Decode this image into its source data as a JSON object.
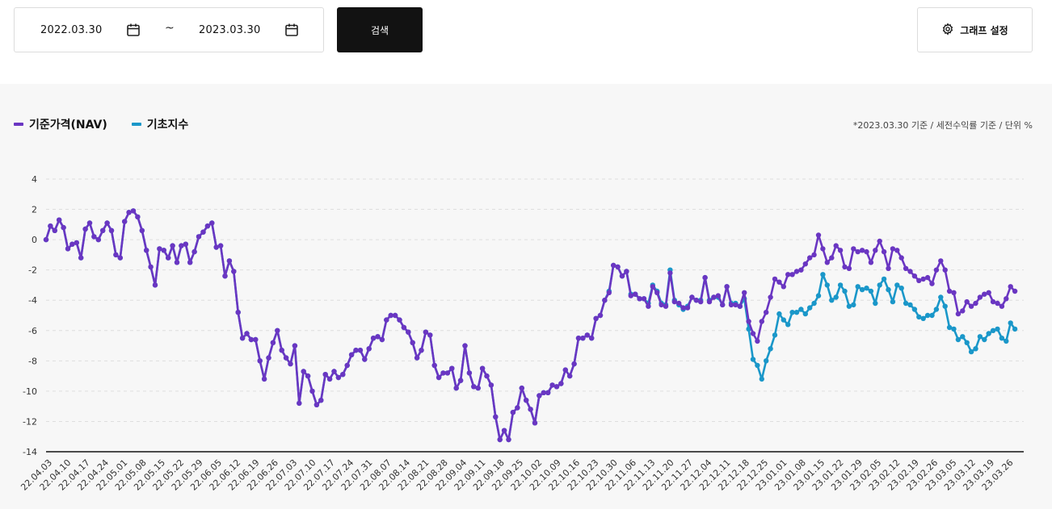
{
  "search": {
    "start_date": "2022.03.30",
    "end_date": "2023.03.30",
    "separator": "~",
    "button_label": "검색",
    "calendar_icon": "calendar-icon"
  },
  "settings": {
    "label": "그래프 설정",
    "icon": "gear-icon"
  },
  "legend": [
    {
      "label": "기준가격(NAV)",
      "color": "#6a36c2"
    },
    {
      "label": "기초지수",
      "color": "#1a97c9"
    }
  ],
  "note": "*2023.03.30 기준 / 세전수익률 기준 / 단위 %",
  "chart_data": {
    "type": "line",
    "ylim": [
      -14,
      4
    ],
    "yticks": [
      -14,
      -12,
      -10,
      -8,
      -6,
      -4,
      -2,
      0,
      2,
      4
    ],
    "grid": true,
    "xtick_labels": [
      "22.04.03",
      "22.04.10",
      "22.04.17",
      "22.04.24",
      "22.05.01",
      "22.05.08",
      "22.05.15",
      "22.05.22",
      "22.05.29",
      "22.06.05",
      "22.06.12",
      "22.06.19",
      "22.06.26",
      "22.07.03",
      "22.07.10",
      "22.07.17",
      "22.07.24",
      "22.07.31",
      "22.08.07",
      "22.08.14",
      "22.08.21",
      "22.08.28",
      "22.09.04",
      "22.09.11",
      "22.09.18",
      "22.09.25",
      "22.10.02",
      "22.10.09",
      "22.10.16",
      "22.10.23",
      "22.10.30",
      "22.11.06",
      "22.11.13",
      "22.11.20",
      "22.11.27",
      "22.12.04",
      "22.12.11",
      "22.12.18",
      "22.12.25",
      "23.01.01",
      "23.01.08",
      "23.01.15",
      "23.01.22",
      "23.01.29",
      "23.02.05",
      "23.02.12",
      "23.02.19",
      "23.02.26",
      "23.03.05",
      "23.03.12",
      "23.03.19",
      "23.03.26"
    ],
    "series": [
      {
        "name": "기준가격(NAV)",
        "color": "#6a36c2",
        "values": [
          0.0,
          0.9,
          0.6,
          1.3,
          0.8,
          -0.6,
          -0.3,
          -0.2,
          -1.2,
          0.7,
          1.1,
          0.2,
          0.0,
          0.6,
          1.1,
          0.6,
          -1.0,
          -1.2,
          1.2,
          1.8,
          1.9,
          1.5,
          0.6,
          -0.7,
          -1.8,
          -3.0,
          -0.6,
          -0.7,
          -1.2,
          -0.4,
          -1.5,
          -0.4,
          -0.3,
          -1.5,
          -0.8,
          0.2,
          0.5,
          0.9,
          1.1,
          -0.5,
          -0.4,
          -2.4,
          -1.4,
          -2.1,
          -4.8,
          -6.5,
          -6.2,
          -6.6,
          -6.6,
          -8.0,
          -9.2,
          -7.8,
          -6.8,
          -6.0,
          -7.3,
          -7.8,
          -8.2,
          -7.0,
          -10.8,
          -8.7,
          -9.0,
          -10.0,
          -10.9,
          -10.6,
          -8.9,
          -9.2,
          -8.7,
          -9.1,
          -8.9,
          -8.3,
          -7.6,
          -7.3,
          -7.3,
          -7.9,
          -7.2,
          -6.5,
          -6.4,
          -6.6,
          -5.3,
          -5.0,
          -5.0,
          -5.3,
          -5.8,
          -6.1,
          -6.8,
          -7.8,
          -7.3,
          -6.1,
          -6.3,
          -8.3,
          -9.1,
          -8.8,
          -8.8,
          -8.5,
          -9.8,
          -9.3,
          -7.0,
          -8.8,
          -9.7,
          -9.8,
          -8.5,
          -9.0,
          -9.6,
          -11.7,
          -13.2,
          -12.6,
          -13.2,
          -11.4,
          -11.1,
          -9.8,
          -10.6,
          -11.2,
          -12.1,
          -10.3,
          -10.1,
          -10.1,
          -9.6,
          -9.7,
          -9.5,
          -8.6,
          -9.0,
          -8.2,
          -6.5,
          -6.5,
          -6.3,
          -6.5,
          -5.2,
          -5.0,
          -4.0,
          -3.5,
          -1.7,
          -1.8,
          -2.4,
          -2.1,
          -3.7,
          -3.6,
          -3.9,
          -3.9,
          -4.4,
          -3.1,
          -3.5,
          -4.3,
          -4.4,
          -2.2,
          -4.1,
          -4.2,
          -4.5,
          -4.5,
          -3.8,
          -4.0,
          -4.1,
          -2.5,
          -4.1,
          -3.8,
          -3.7,
          -4.3,
          -3.1,
          -4.3,
          -4.3,
          -4.4,
          -3.5,
          -5.4,
          -6.2,
          -6.7,
          -5.4,
          -4.8,
          -3.8,
          -2.6,
          -2.8,
          -3.1,
          -2.3,
          -2.3,
          -2.1,
          -2.0,
          -1.6,
          -1.2,
          -1.0,
          0.3,
          -0.6,
          -1.5,
          -1.2,
          -0.4,
          -0.7,
          -1.8,
          -1.9,
          -0.6,
          -0.8,
          -0.7,
          -0.8,
          -1.5,
          -0.7,
          -0.1,
          -0.8,
          -1.9,
          -0.6,
          -0.7,
          -1.2,
          -1.9,
          -2.1,
          -2.4,
          -2.7,
          -2.6,
          -2.5,
          -2.9,
          -2.0,
          -1.4,
          -2.0,
          -3.4,
          -3.5,
          -4.9,
          -4.7,
          -4.1,
          -4.4,
          -4.2,
          -3.8,
          -3.6,
          -3.5,
          -4.1,
          -4.2,
          -4.4,
          -3.9,
          -3.1,
          -3.4
        ],
        "reported_values_only": true
      },
      {
        "name": "기초지수",
        "color": "#1a97c9",
        "values": [
          0.0,
          0.9,
          0.6,
          1.3,
          0.8,
          -0.6,
          -0.3,
          -0.2,
          -1.2,
          0.7,
          1.1,
          0.2,
          0.0,
          0.6,
          1.1,
          0.6,
          -1.0,
          -1.2,
          1.2,
          1.8,
          1.9,
          1.5,
          0.6,
          -0.7,
          -1.8,
          -3.0,
          -0.6,
          -0.7,
          -1.2,
          -0.4,
          -1.5,
          -0.4,
          -0.3,
          -1.5,
          -0.8,
          0.2,
          0.5,
          0.9,
          1.1,
          -0.5,
          -0.4,
          -2.4,
          -1.4,
          -2.1,
          -4.8,
          -6.5,
          -6.2,
          -6.6,
          -6.6,
          -8.0,
          -9.2,
          -7.8,
          -6.8,
          -6.0,
          -7.3,
          -7.8,
          -8.2,
          -7.0,
          -10.8,
          -8.7,
          -9.0,
          -10.0,
          -10.9,
          -10.6,
          -8.9,
          -9.2,
          -8.7,
          -9.1,
          -8.9,
          -8.3,
          -7.6,
          -7.3,
          -7.3,
          -7.9,
          -7.2,
          -6.5,
          -6.4,
          -6.6,
          -5.3,
          -5.0,
          -5.0,
          -5.3,
          -5.8,
          -6.1,
          -6.8,
          -7.8,
          -7.3,
          -6.1,
          -6.3,
          -8.3,
          -9.1,
          -8.8,
          -8.8,
          -8.5,
          -9.8,
          -9.3,
          -7.0,
          -8.8,
          -9.7,
          -9.8,
          -8.5,
          -9.0,
          -9.6,
          -11.7,
          -13.2,
          -12.6,
          -13.2,
          -11.4,
          -11.1,
          -9.8,
          -10.6,
          -11.2,
          -12.1,
          -10.3,
          -10.1,
          -10.1,
          -9.6,
          -9.7,
          -9.5,
          -8.6,
          -9.0,
          -8.2,
          -6.5,
          -6.5,
          -6.3,
          -6.5,
          -5.2,
          -5.0,
          -4.0,
          -3.4,
          -1.7,
          -1.8,
          -2.4,
          -2.1,
          -3.6,
          -3.6,
          -3.9,
          -3.9,
          -4.2,
          -3.0,
          -3.4,
          -4.2,
          -4.3,
          -2.0,
          -4.0,
          -4.3,
          -4.6,
          -4.4,
          -3.8,
          -4.0,
          -4.0,
          -2.5,
          -4.0,
          -3.8,
          -3.8,
          -4.3,
          -3.1,
          -4.2,
          -4.2,
          -4.4,
          -3.9,
          -5.9,
          -7.9,
          -8.3,
          -9.2,
          -8.0,
          -7.2,
          -6.3,
          -4.9,
          -5.3,
          -5.6,
          -4.8,
          -4.8,
          -4.6,
          -4.9,
          -4.5,
          -4.2,
          -3.7,
          -2.3,
          -3.0,
          -4.0,
          -3.8,
          -3.0,
          -3.4,
          -4.4,
          -4.3,
          -3.1,
          -3.3,
          -3.2,
          -3.4,
          -4.2,
          -3.0,
          -2.6,
          -3.3,
          -4.1,
          -3.0,
          -3.2,
          -4.2,
          -4.3,
          -4.6,
          -5.1,
          -5.2,
          -5.0,
          -5.0,
          -4.6,
          -3.8,
          -4.4,
          -5.8,
          -5.9,
          -6.6,
          -6.4,
          -6.8,
          -7.4,
          -7.2,
          -6.4,
          -6.6,
          -6.2,
          -6.0,
          -5.9,
          -6.5,
          -6.7,
          -5.5,
          -5.9
        ]
      }
    ]
  }
}
